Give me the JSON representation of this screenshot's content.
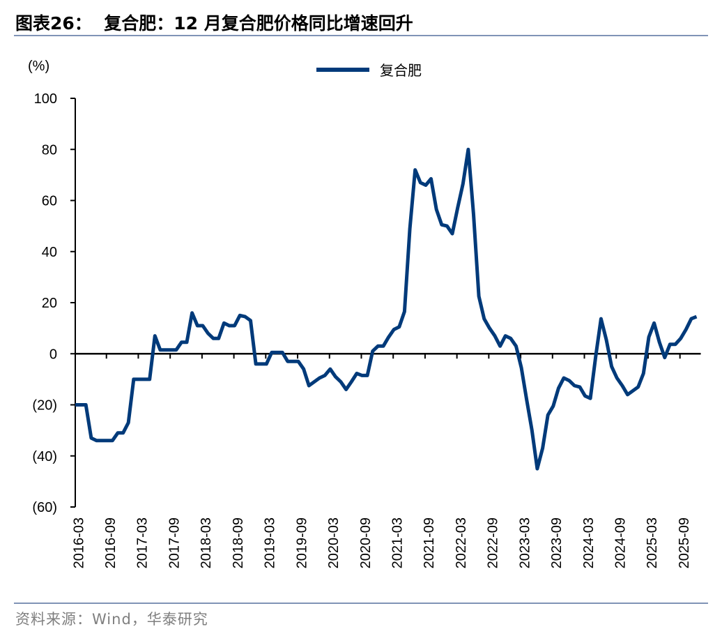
{
  "header": {
    "title": "图表26：  复合肥：12 月复合肥价格同比增速回升"
  },
  "footer": {
    "source": "资料来源：Wind，华泰研究"
  },
  "colors": {
    "series": "#003A7A",
    "rule": "#7f93b6"
  },
  "chart_data": {
    "type": "line",
    "title": "复合肥：12 月复合肥价格同比增速回升",
    "ylabel": "(%)",
    "xlabel": "",
    "ylim": [
      -60,
      100
    ],
    "yticks": [
      100,
      80,
      60,
      40,
      20,
      0,
      -20,
      -40,
      -60
    ],
    "ytick_labels": [
      "100",
      "80",
      "60",
      "40",
      "20",
      "0",
      "(20)",
      "(40)",
      "(60)"
    ],
    "x_start": "2016-03",
    "x_end": "2025-12",
    "xtick_labels": [
      "2016-03",
      "2016-09",
      "2017-03",
      "2017-09",
      "2018-03",
      "2018-09",
      "2019-03",
      "2019-09",
      "2020-03",
      "2020-09",
      "2021-03",
      "2021-09",
      "2022-03",
      "2022-09",
      "2023-03",
      "2023-09",
      "2024-03",
      "2024-09",
      "2025-03",
      "2025-09"
    ],
    "legend_position": "top-center",
    "grid": false,
    "series": [
      {
        "name": "复合肥",
        "values": [
          -20,
          -20,
          -20,
          -33,
          -34,
          -34,
          -34,
          -34,
          -31,
          -31,
          -27,
          -10,
          -10,
          -10,
          -10,
          7,
          1.5,
          1.5,
          1.5,
          1.5,
          4.5,
          4.5,
          16,
          11,
          11,
          8,
          6,
          6,
          12,
          11,
          11,
          15,
          14.5,
          13,
          -4,
          -4,
          -4,
          0.5,
          0.5,
          0.5,
          -3,
          -3,
          -3,
          -6,
          -12.5,
          -11,
          -9.5,
          -8.5,
          -6,
          -9,
          -11,
          -14,
          -11,
          -7.7,
          -8.5,
          -8.5,
          1,
          3,
          3,
          6.5,
          9.5,
          10.5,
          16.5,
          49,
          72,
          67,
          66,
          68.5,
          56.5,
          50.5,
          50,
          47,
          57,
          66.5,
          80,
          54.5,
          22.5,
          13.7,
          10,
          7,
          3,
          7,
          6,
          3,
          -5.5,
          -18,
          -30,
          -45,
          -37,
          -24,
          -20.5,
          -13.5,
          -9.5,
          -10.5,
          -12.5,
          -13,
          -16.5,
          -17.5,
          -1,
          13.7,
          5.5,
          -5,
          -9.5,
          -12.5,
          -16,
          -14.5,
          -13,
          -7.7,
          6.5,
          12,
          4.5,
          -1.5,
          3.7,
          3.7,
          6,
          9.5,
          13.7,
          14.5
        ]
      }
    ]
  }
}
